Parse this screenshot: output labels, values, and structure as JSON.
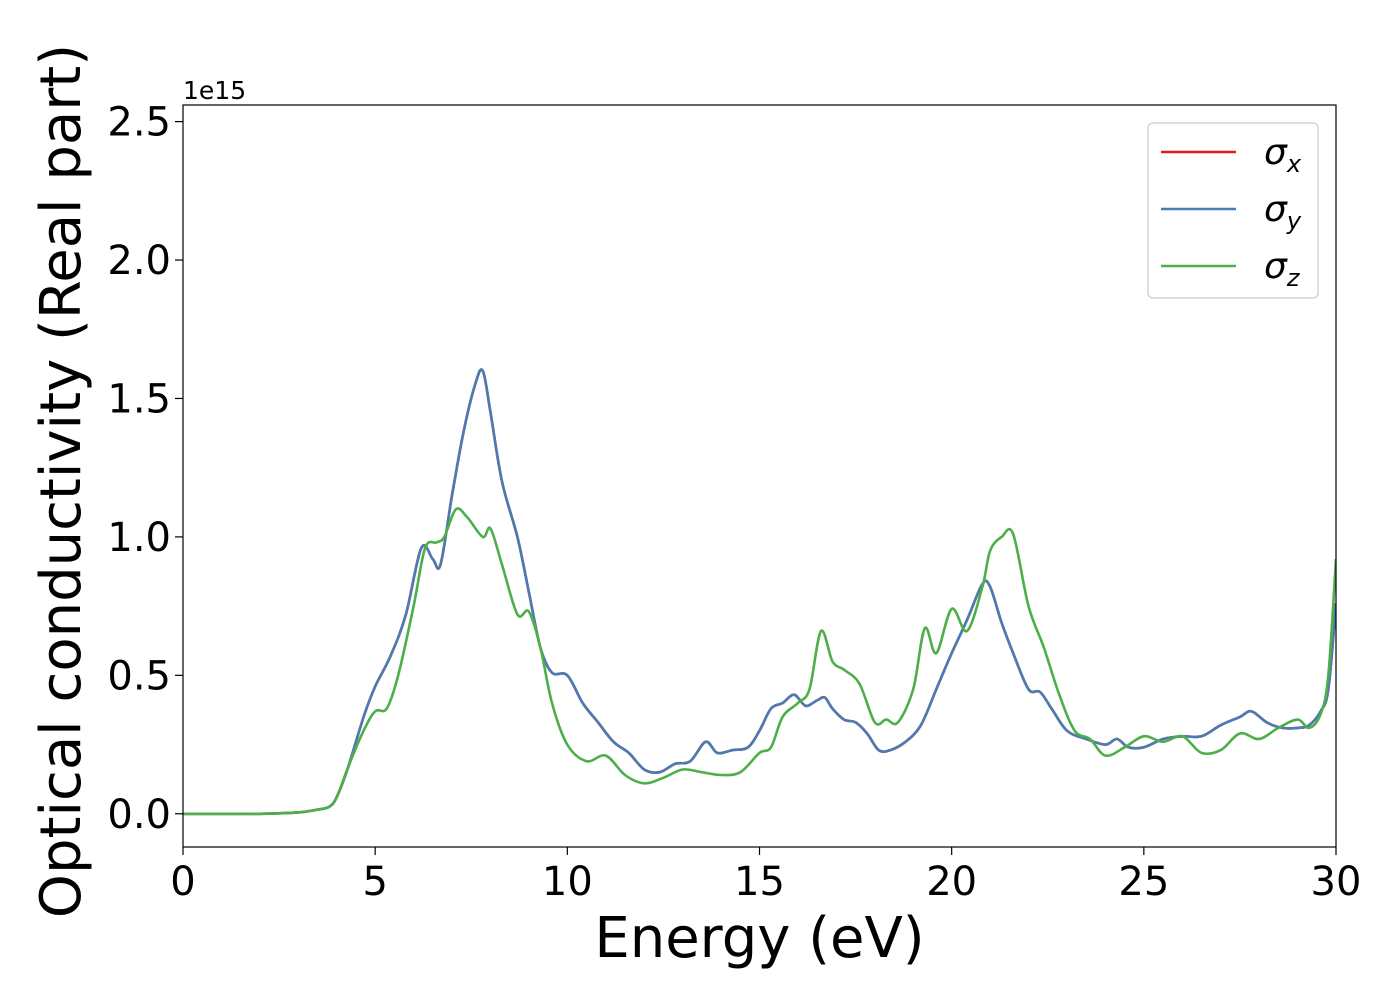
{
  "chart_data": {
    "type": "line",
    "xlabel": "Energy (eV)",
    "ylabel": "Optical conductivity (Real part)",
    "y_offset_label": "1e15",
    "xlim": [
      0,
      30
    ],
    "ylim": [
      -0.12,
      2.56
    ],
    "x_ticks": [
      0,
      5,
      10,
      15,
      20,
      25,
      30
    ],
    "x_tick_labels": [
      "0",
      "5",
      "10",
      "15",
      "20",
      "25",
      "30"
    ],
    "y_ticks": [
      0.0,
      0.5,
      1.0,
      1.5,
      2.0,
      2.5
    ],
    "y_tick_labels": [
      "0.0",
      "0.5",
      "1.0",
      "1.5",
      "2.0",
      "2.5"
    ],
    "grid": false,
    "legend_position": "top-right",
    "series": [
      {
        "name": "σx",
        "symbol": "σ",
        "subscript": "x",
        "color": "#e41a1c",
        "x": [
          0,
          1,
          2,
          3,
          3.5,
          3.8,
          4.0,
          4.3,
          4.7,
          5.0,
          5.4,
          5.8,
          6.2,
          6.5,
          6.7,
          7.0,
          7.3,
          7.6,
          7.8,
          8.0,
          8.3,
          8.7,
          9.0,
          9.3,
          9.6,
          10.0,
          10.4,
          10.8,
          11.2,
          11.6,
          12.0,
          12.4,
          12.8,
          13.2,
          13.6,
          13.9,
          14.3,
          14.7,
          15.0,
          15.3,
          15.6,
          15.9,
          16.2,
          16.5,
          16.7,
          16.9,
          17.2,
          17.5,
          17.8,
          18.1,
          18.4,
          18.8,
          19.2,
          19.6,
          20.0,
          20.4,
          20.8,
          21.0,
          21.3,
          21.6,
          22.0,
          22.3,
          22.6,
          23.0,
          23.5,
          24.0,
          24.3,
          24.6,
          25.0,
          25.5,
          26.0,
          26.5,
          27.0,
          27.5,
          27.8,
          28.2,
          28.6,
          29.0,
          29.3,
          29.6,
          29.8,
          30.0
        ],
        "y": [
          0,
          0,
          0,
          0.005,
          0.015,
          0.025,
          0.06,
          0.17,
          0.35,
          0.46,
          0.57,
          0.72,
          0.96,
          0.92,
          0.9,
          1.15,
          1.38,
          1.55,
          1.6,
          1.45,
          1.2,
          1.0,
          0.8,
          0.6,
          0.51,
          0.5,
          0.4,
          0.33,
          0.26,
          0.22,
          0.16,
          0.15,
          0.18,
          0.19,
          0.26,
          0.22,
          0.23,
          0.24,
          0.3,
          0.38,
          0.4,
          0.43,
          0.39,
          0.41,
          0.42,
          0.38,
          0.34,
          0.33,
          0.29,
          0.23,
          0.23,
          0.26,
          0.32,
          0.45,
          0.58,
          0.7,
          0.83,
          0.82,
          0.69,
          0.58,
          0.45,
          0.44,
          0.38,
          0.3,
          0.27,
          0.25,
          0.27,
          0.24,
          0.24,
          0.27,
          0.28,
          0.28,
          0.32,
          0.35,
          0.37,
          0.33,
          0.31,
          0.31,
          0.32,
          0.37,
          0.45,
          0.76
        ]
      },
      {
        "name": "σy",
        "symbol": "σ",
        "subscript": "y",
        "color": "#4a7cb4",
        "x": [
          0,
          1,
          2,
          3,
          3.5,
          3.8,
          4.0,
          4.3,
          4.7,
          5.0,
          5.4,
          5.8,
          6.2,
          6.5,
          6.7,
          7.0,
          7.3,
          7.6,
          7.8,
          8.0,
          8.3,
          8.7,
          9.0,
          9.3,
          9.6,
          10.0,
          10.4,
          10.8,
          11.2,
          11.6,
          12.0,
          12.4,
          12.8,
          13.2,
          13.6,
          13.9,
          14.3,
          14.7,
          15.0,
          15.3,
          15.6,
          15.9,
          16.2,
          16.5,
          16.7,
          16.9,
          17.2,
          17.5,
          17.8,
          18.1,
          18.4,
          18.8,
          19.2,
          19.6,
          20.0,
          20.4,
          20.8,
          21.0,
          21.3,
          21.6,
          22.0,
          22.3,
          22.6,
          23.0,
          23.5,
          24.0,
          24.3,
          24.6,
          25.0,
          25.5,
          26.0,
          26.5,
          27.0,
          27.5,
          27.8,
          28.2,
          28.6,
          29.0,
          29.3,
          29.6,
          29.8,
          30.0
        ],
        "y": [
          0,
          0,
          0,
          0.005,
          0.015,
          0.025,
          0.06,
          0.17,
          0.35,
          0.46,
          0.57,
          0.72,
          0.96,
          0.92,
          0.9,
          1.15,
          1.38,
          1.55,
          1.6,
          1.45,
          1.2,
          1.0,
          0.8,
          0.6,
          0.51,
          0.5,
          0.4,
          0.33,
          0.26,
          0.22,
          0.16,
          0.15,
          0.18,
          0.19,
          0.26,
          0.22,
          0.23,
          0.24,
          0.3,
          0.38,
          0.4,
          0.43,
          0.39,
          0.41,
          0.42,
          0.38,
          0.34,
          0.33,
          0.29,
          0.23,
          0.23,
          0.26,
          0.32,
          0.45,
          0.58,
          0.7,
          0.83,
          0.82,
          0.69,
          0.58,
          0.45,
          0.44,
          0.38,
          0.3,
          0.27,
          0.25,
          0.27,
          0.24,
          0.24,
          0.27,
          0.28,
          0.28,
          0.32,
          0.35,
          0.37,
          0.33,
          0.31,
          0.31,
          0.32,
          0.37,
          0.45,
          0.76
        ]
      },
      {
        "name": "σz",
        "symbol": "σ",
        "subscript": "z",
        "color": "#4daf4a",
        "x": [
          0,
          1,
          2,
          3,
          3.5,
          3.8,
          4.0,
          4.3,
          4.7,
          5.0,
          5.3,
          5.6,
          6.0,
          6.3,
          6.6,
          6.8,
          7.1,
          7.4,
          7.8,
          8.0,
          8.3,
          8.7,
          9.0,
          9.3,
          9.6,
          10.0,
          10.5,
          11.0,
          11.5,
          12.0,
          12.5,
          13.0,
          13.5,
          14.0,
          14.5,
          15.0,
          15.3,
          15.6,
          16.0,
          16.3,
          16.6,
          16.9,
          17.2,
          17.6,
          18.0,
          18.3,
          18.6,
          19.0,
          19.3,
          19.6,
          20.0,
          20.4,
          20.8,
          21.0,
          21.3,
          21.6,
          22.0,
          22.4,
          22.8,
          23.2,
          23.6,
          24.0,
          24.5,
          25.0,
          25.5,
          26.0,
          26.5,
          27.0,
          27.5,
          28.0,
          28.5,
          29.0,
          29.3,
          29.6,
          29.8,
          30.0
        ],
        "y": [
          0,
          0,
          0,
          0.005,
          0.015,
          0.025,
          0.06,
          0.17,
          0.3,
          0.37,
          0.38,
          0.5,
          0.75,
          0.96,
          0.98,
          1.0,
          1.1,
          1.07,
          1.0,
          1.03,
          0.9,
          0.72,
          0.73,
          0.6,
          0.4,
          0.25,
          0.19,
          0.21,
          0.14,
          0.11,
          0.13,
          0.16,
          0.15,
          0.14,
          0.15,
          0.22,
          0.24,
          0.35,
          0.4,
          0.45,
          0.66,
          0.55,
          0.52,
          0.47,
          0.33,
          0.34,
          0.33,
          0.45,
          0.67,
          0.58,
          0.74,
          0.66,
          0.82,
          0.95,
          1.0,
          1.01,
          0.75,
          0.6,
          0.43,
          0.3,
          0.27,
          0.21,
          0.24,
          0.28,
          0.26,
          0.28,
          0.22,
          0.23,
          0.29,
          0.27,
          0.31,
          0.34,
          0.31,
          0.36,
          0.5,
          0.92
        ]
      }
    ]
  }
}
